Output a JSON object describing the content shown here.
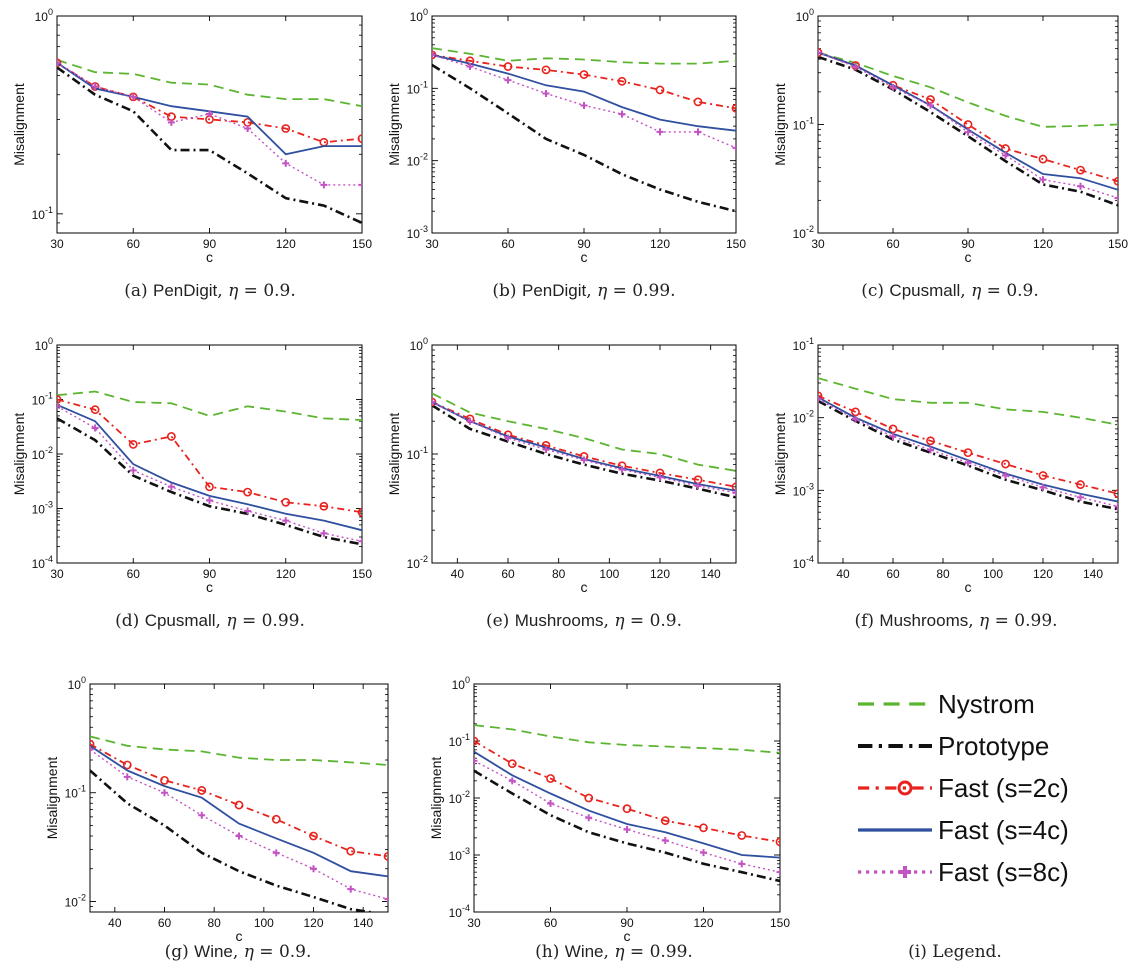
{
  "legend": [
    {
      "name": "Nystrom",
      "color": "#5cb531",
      "dash": "10,6",
      "marker": "none"
    },
    {
      "name": "Prototype",
      "color": "#111111",
      "dash": "9,4,2,4",
      "marker": "none"
    },
    {
      "name": "Fast (s=2c)",
      "color": "#e8231e",
      "dash": "7,4,2,4",
      "marker": "circle"
    },
    {
      "name": "Fast (s=4c)",
      "color": "#2f4f9f",
      "dash": "",
      "marker": "none"
    },
    {
      "name": "Fast (s=8c)",
      "color": "#c353c3",
      "dash": "2,3",
      "marker": "plus"
    }
  ],
  "legend_caption": "(i) Legend.",
  "chart_data": [
    {
      "id": "a",
      "type": "line",
      "caption_prefix": "(a)",
      "dataset": "PenDigit",
      "eta": "0.9.",
      "xlabel": "c",
      "ylabel": "Misalignment",
      "xlim": [
        30,
        150
      ],
      "yscale": "log",
      "ylim": [
        0.08,
        1
      ],
      "xticks": [
        "30",
        "60",
        "90",
        "120",
        "150"
      ],
      "yticks": [
        {
          "label": "10",
          "exp": "-1",
          "value": 0.1
        },
        {
          "label": "10",
          "exp": "0",
          "value": 1
        }
      ],
      "x": [
        30,
        45,
        60,
        75,
        90,
        105,
        120,
        135,
        150
      ],
      "series": [
        {
          "name": "Nystrom",
          "values": [
            0.6,
            0.52,
            0.51,
            0.46,
            0.45,
            0.4,
            0.38,
            0.38,
            0.35
          ]
        },
        {
          "name": "Prototype",
          "values": [
            0.55,
            0.4,
            0.33,
            0.21,
            0.21,
            0.16,
            0.12,
            0.11,
            0.09
          ]
        },
        {
          "name": "Fast (s=2c)",
          "values": [
            0.58,
            0.44,
            0.39,
            0.31,
            0.3,
            0.29,
            0.27,
            0.23,
            0.24
          ]
        },
        {
          "name": "Fast (s=4c)",
          "values": [
            0.58,
            0.43,
            0.39,
            0.35,
            0.33,
            0.31,
            0.2,
            0.22,
            0.22
          ]
        },
        {
          "name": "Fast (s=8c)",
          "values": [
            0.58,
            0.44,
            0.39,
            0.29,
            0.32,
            0.27,
            0.18,
            0.14,
            0.14
          ]
        }
      ]
    },
    {
      "id": "b",
      "type": "line",
      "caption_prefix": "(b)",
      "dataset": "PenDigit",
      "eta": "0.99.",
      "xlabel": "c",
      "ylabel": "Misalignment",
      "xlim": [
        30,
        150
      ],
      "yscale": "log",
      "ylim": [
        0.001,
        1
      ],
      "xticks": [
        "30",
        "60",
        "90",
        "120",
        "150"
      ],
      "yticks": [
        {
          "label": "10",
          "exp": "-3",
          "value": 0.001
        },
        {
          "label": "10",
          "exp": "-2",
          "value": 0.01
        },
        {
          "label": "10",
          "exp": "-1",
          "value": 0.1
        },
        {
          "label": "10",
          "exp": "0",
          "value": 1
        }
      ],
      "x": [
        30,
        45,
        60,
        75,
        90,
        105,
        120,
        135,
        150
      ],
      "series": [
        {
          "name": "Nystrom",
          "values": [
            0.36,
            0.3,
            0.24,
            0.26,
            0.25,
            0.23,
            0.22,
            0.22,
            0.24
          ]
        },
        {
          "name": "Prototype",
          "values": [
            0.21,
            0.1,
            0.045,
            0.02,
            0.012,
            0.0065,
            0.004,
            0.0027,
            0.002
          ]
        },
        {
          "name": "Fast (s=2c)",
          "values": [
            0.29,
            0.24,
            0.2,
            0.18,
            0.155,
            0.125,
            0.095,
            0.065,
            0.053
          ]
        },
        {
          "name": "Fast (s=4c)",
          "values": [
            0.29,
            0.22,
            0.16,
            0.11,
            0.09,
            0.055,
            0.037,
            0.03,
            0.026
          ]
        },
        {
          "name": "Fast (s=8c)",
          "values": [
            0.29,
            0.2,
            0.13,
            0.085,
            0.058,
            0.044,
            0.025,
            0.025,
            0.015
          ]
        }
      ]
    },
    {
      "id": "c",
      "type": "line",
      "caption_prefix": "(c)",
      "dataset": "Cpusmall",
      "eta": "0.9.",
      "xlabel": "c",
      "ylabel": "Misalignment",
      "xlim": [
        30,
        150
      ],
      "yscale": "log",
      "ylim": [
        0.01,
        1
      ],
      "xticks": [
        "30",
        "60",
        "90",
        "120",
        "150"
      ],
      "yticks": [
        {
          "label": "10",
          "exp": "-2",
          "value": 0.01
        },
        {
          "label": "10",
          "exp": "-1",
          "value": 0.1
        },
        {
          "label": "10",
          "exp": "0",
          "value": 1
        }
      ],
      "x": [
        30,
        45,
        60,
        75,
        90,
        105,
        120,
        135,
        150
      ],
      "series": [
        {
          "name": "Nystrom",
          "values": [
            0.46,
            0.37,
            0.28,
            0.22,
            0.16,
            0.12,
            0.095,
            0.097,
            0.1
          ]
        },
        {
          "name": "Prototype",
          "values": [
            0.42,
            0.32,
            0.21,
            0.13,
            0.078,
            0.046,
            0.028,
            0.024,
            0.018
          ]
        },
        {
          "name": "Fast (s=2c)",
          "values": [
            0.46,
            0.35,
            0.23,
            0.17,
            0.1,
            0.06,
            0.048,
            0.038,
            0.03
          ]
        },
        {
          "name": "Fast (s=4c)",
          "values": [
            0.46,
            0.35,
            0.23,
            0.15,
            0.09,
            0.055,
            0.035,
            0.032,
            0.025
          ]
        },
        {
          "name": "Fast (s=8c)",
          "values": [
            0.46,
            0.34,
            0.22,
            0.15,
            0.085,
            0.052,
            0.031,
            0.027,
            0.021
          ]
        }
      ]
    },
    {
      "id": "d",
      "type": "line",
      "caption_prefix": "(d)",
      "dataset": "Cpusmall",
      "eta": "0.99.",
      "xlabel": "c",
      "ylabel": "Misalignment",
      "xlim": [
        30,
        150
      ],
      "yscale": "log",
      "ylim": [
        0.0001,
        1
      ],
      "xticks": [
        "30",
        "60",
        "90",
        "120",
        "150"
      ],
      "yticks": [
        {
          "label": "10",
          "exp": "-4",
          "value": 0.0001
        },
        {
          "label": "10",
          "exp": "-3",
          "value": 0.001
        },
        {
          "label": "10",
          "exp": "-2",
          "value": 0.01
        },
        {
          "label": "10",
          "exp": "-1",
          "value": 0.1
        },
        {
          "label": "10",
          "exp": "0",
          "value": 1
        }
      ],
      "x": [
        30,
        45,
        60,
        75,
        90,
        105,
        120,
        135,
        150
      ],
      "series": [
        {
          "name": "Nystrom",
          "values": [
            0.12,
            0.14,
            0.09,
            0.085,
            0.05,
            0.075,
            0.06,
            0.045,
            0.042
          ]
        },
        {
          "name": "Prototype",
          "values": [
            0.045,
            0.018,
            0.004,
            0.002,
            0.0011,
            0.0008,
            0.0005,
            0.0003,
            0.00022
          ]
        },
        {
          "name": "Fast (s=2c)",
          "values": [
            0.1,
            0.065,
            0.015,
            0.021,
            0.0025,
            0.002,
            0.0013,
            0.0011,
            0.00085
          ]
        },
        {
          "name": "Fast (s=4c)",
          "values": [
            0.08,
            0.04,
            0.0065,
            0.003,
            0.0017,
            0.0012,
            0.0008,
            0.0006,
            0.0004
          ]
        },
        {
          "name": "Fast (s=8c)",
          "values": [
            0.075,
            0.03,
            0.005,
            0.0025,
            0.0014,
            0.0009,
            0.0006,
            0.00035,
            0.00025
          ]
        }
      ]
    },
    {
      "id": "e",
      "type": "line",
      "caption_prefix": "(e)",
      "dataset": "Mushrooms",
      "eta": "0.9.",
      "xlabel": "c",
      "ylabel": "Misalignment",
      "xlim": [
        30,
        150
      ],
      "yscale": "log",
      "ylim": [
        0.01,
        1
      ],
      "xticks": [
        "40",
        "60",
        "80",
        "100",
        "120",
        "140"
      ],
      "yticks": [
        {
          "label": "10",
          "exp": "-2",
          "value": 0.01
        },
        {
          "label": "10",
          "exp": "-1",
          "value": 0.1
        },
        {
          "label": "10",
          "exp": "0",
          "value": 1
        }
      ],
      "x": [
        30,
        45,
        60,
        75,
        90,
        105,
        120,
        135,
        150
      ],
      "series": [
        {
          "name": "Nystrom",
          "values": [
            0.36,
            0.24,
            0.2,
            0.17,
            0.14,
            0.11,
            0.1,
            0.08,
            0.07
          ]
        },
        {
          "name": "Prototype",
          "values": [
            0.28,
            0.17,
            0.13,
            0.1,
            0.08,
            0.066,
            0.057,
            0.048,
            0.04
          ]
        },
        {
          "name": "Fast (s=2c)",
          "values": [
            0.3,
            0.21,
            0.15,
            0.12,
            0.095,
            0.078,
            0.067,
            0.058,
            0.05
          ]
        },
        {
          "name": "Fast (s=4c)",
          "values": [
            0.3,
            0.2,
            0.145,
            0.115,
            0.09,
            0.074,
            0.063,
            0.053,
            0.046
          ]
        },
        {
          "name": "Fast (s=8c)",
          "values": [
            0.3,
            0.2,
            0.14,
            0.11,
            0.088,
            0.072,
            0.061,
            0.051,
            0.044
          ]
        }
      ]
    },
    {
      "id": "f",
      "type": "line",
      "caption_prefix": "(f)",
      "dataset": "Mushrooms",
      "eta": "0.99.",
      "xlabel": "c",
      "ylabel": "Misalignment",
      "xlim": [
        30,
        150
      ],
      "yscale": "log",
      "ylim": [
        0.0001,
        0.1
      ],
      "xticks": [
        "40",
        "60",
        "80",
        "100",
        "120",
        "140"
      ],
      "yticks": [
        {
          "label": "10",
          "exp": "-4",
          "value": 0.0001
        },
        {
          "label": "10",
          "exp": "-3",
          "value": 0.001
        },
        {
          "label": "10",
          "exp": "-2",
          "value": 0.01
        },
        {
          "label": "10",
          "exp": "-1",
          "value": 0.1
        }
      ],
      "x": [
        30,
        45,
        60,
        75,
        90,
        105,
        120,
        135,
        150
      ],
      "series": [
        {
          "name": "Nystrom",
          "values": [
            0.035,
            0.025,
            0.018,
            0.016,
            0.016,
            0.013,
            0.012,
            0.01,
            0.008
          ]
        },
        {
          "name": "Prototype",
          "values": [
            0.017,
            0.009,
            0.005,
            0.0033,
            0.0022,
            0.0014,
            0.001,
            0.0007,
            0.00055
          ]
        },
        {
          "name": "Fast (s=2c)",
          "values": [
            0.02,
            0.012,
            0.007,
            0.0048,
            0.0033,
            0.0023,
            0.0016,
            0.0012,
            0.0009
          ]
        },
        {
          "name": "Fast (s=4c)",
          "values": [
            0.019,
            0.01,
            0.006,
            0.004,
            0.0026,
            0.0017,
            0.0012,
            0.0009,
            0.0007
          ]
        },
        {
          "name": "Fast (s=8c)",
          "values": [
            0.018,
            0.0095,
            0.0055,
            0.0036,
            0.0024,
            0.0016,
            0.0011,
            0.0008,
            0.0006
          ]
        }
      ]
    },
    {
      "id": "g",
      "type": "line",
      "caption_prefix": "(g)",
      "dataset": "Wine",
      "eta": "0.9.",
      "xlabel": "c",
      "ylabel": "Misalignment",
      "xlim": [
        30,
        150
      ],
      "yscale": "log",
      "ylim": [
        0.008,
        1
      ],
      "xticks": [
        "40",
        "60",
        "80",
        "100",
        "120",
        "140"
      ],
      "yticks": [
        {
          "label": "10",
          "exp": "-2",
          "value": 0.01
        },
        {
          "label": "10",
          "exp": "-1",
          "value": 0.1
        },
        {
          "label": "10",
          "exp": "0",
          "value": 1
        }
      ],
      "x": [
        30,
        45,
        60,
        75,
        90,
        105,
        120,
        135,
        150
      ],
      "series": [
        {
          "name": "Nystrom",
          "values": [
            0.33,
            0.27,
            0.25,
            0.24,
            0.21,
            0.2,
            0.2,
            0.19,
            0.18
          ]
        },
        {
          "name": "Prototype",
          "values": [
            0.16,
            0.08,
            0.05,
            0.028,
            0.019,
            0.014,
            0.011,
            0.0085,
            0.0075
          ]
        },
        {
          "name": "Fast (s=2c)",
          "values": [
            0.28,
            0.18,
            0.13,
            0.105,
            0.077,
            0.057,
            0.04,
            0.029,
            0.026
          ]
        },
        {
          "name": "Fast (s=4c)",
          "values": [
            0.27,
            0.16,
            0.115,
            0.09,
            0.052,
            0.038,
            0.028,
            0.019,
            0.017
          ]
        },
        {
          "name": "Fast (s=8c)",
          "values": [
            0.25,
            0.14,
            0.1,
            0.062,
            0.04,
            0.028,
            0.02,
            0.013,
            0.0105
          ]
        }
      ]
    },
    {
      "id": "h",
      "type": "line",
      "caption_prefix": "(h)",
      "dataset": "Wine",
      "eta": "0.99.",
      "xlabel": "c",
      "ylabel": "Misalignment",
      "xlim": [
        30,
        150
      ],
      "yscale": "log",
      "ylim": [
        0.0001,
        1
      ],
      "xticks": [
        "30",
        "60",
        "90",
        "120",
        "150"
      ],
      "yticks": [
        {
          "label": "10",
          "exp": "-4",
          "value": 0.0001
        },
        {
          "label": "10",
          "exp": "-3",
          "value": 0.001
        },
        {
          "label": "10",
          "exp": "-2",
          "value": 0.01
        },
        {
          "label": "10",
          "exp": "-1",
          "value": 0.1
        },
        {
          "label": "10",
          "exp": "0",
          "value": 1
        }
      ],
      "x": [
        30,
        45,
        60,
        75,
        90,
        105,
        120,
        135,
        150
      ],
      "series": [
        {
          "name": "Nystrom",
          "values": [
            0.19,
            0.16,
            0.12,
            0.095,
            0.085,
            0.08,
            0.075,
            0.07,
            0.062
          ]
        },
        {
          "name": "Prototype",
          "values": [
            0.03,
            0.012,
            0.005,
            0.0025,
            0.0016,
            0.0011,
            0.0007,
            0.0005,
            0.00035
          ]
        },
        {
          "name": "Fast (s=2c)",
          "values": [
            0.1,
            0.04,
            0.022,
            0.01,
            0.0065,
            0.004,
            0.003,
            0.0022,
            0.0017
          ]
        },
        {
          "name": "Fast (s=4c)",
          "values": [
            0.065,
            0.025,
            0.012,
            0.006,
            0.0035,
            0.0025,
            0.0016,
            0.001,
            0.0009
          ]
        },
        {
          "name": "Fast (s=8c)",
          "values": [
            0.045,
            0.02,
            0.008,
            0.0045,
            0.0028,
            0.0018,
            0.0011,
            0.0007,
            0.0005
          ]
        }
      ]
    }
  ]
}
